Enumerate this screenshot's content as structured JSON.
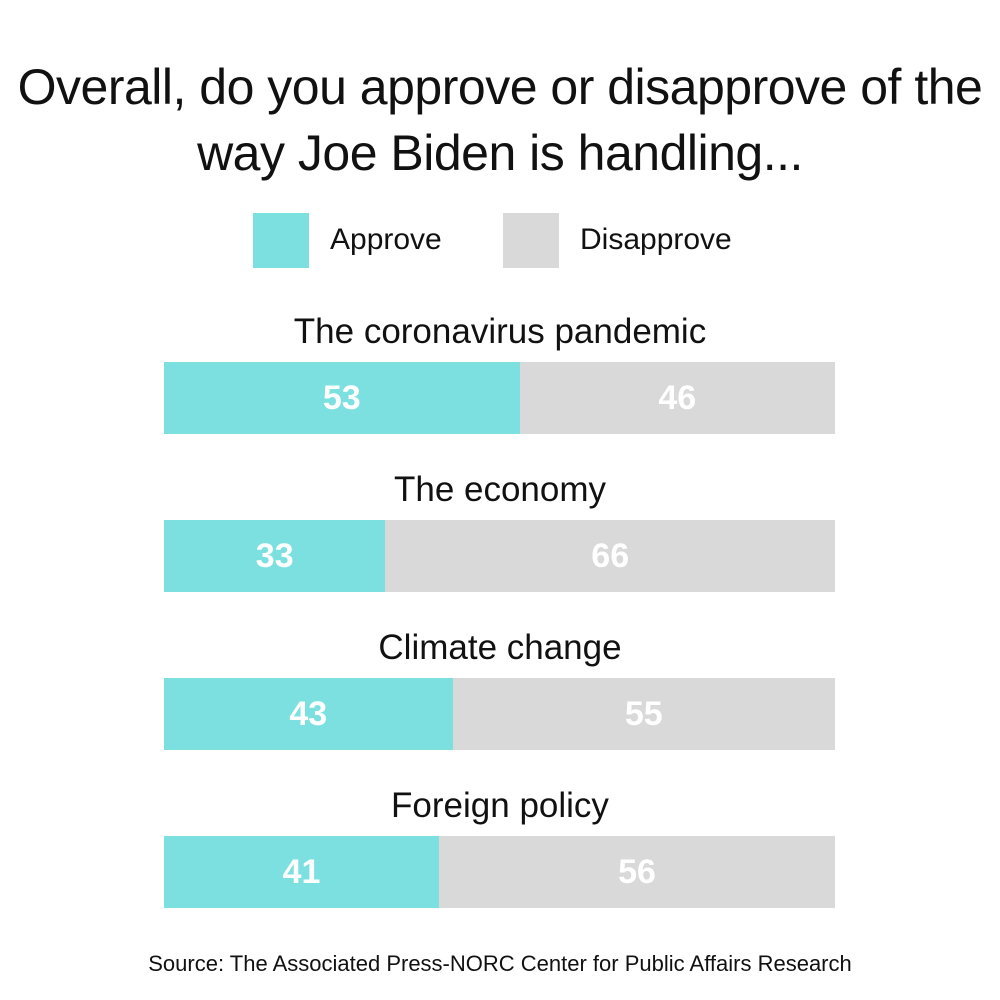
{
  "chart_data": {
    "type": "bar",
    "stacked": true,
    "orientation": "horizontal",
    "title": "Overall, do you approve or disapprove of the way Joe Biden is handling...",
    "categories": [
      "The coronavirus pandemic",
      "The economy",
      "Climate change",
      "Foreign policy"
    ],
    "series": [
      {
        "name": "Approve",
        "color": "#7de0e0",
        "values": [
          53,
          33,
          43,
          41
        ]
      },
      {
        "name": "Disapprove",
        "color": "#d9d9d9",
        "values": [
          46,
          66,
          55,
          56
        ]
      }
    ],
    "legend_position": "top",
    "grid": false,
    "source": "Source: The Associated Press-NORC Center for Public Affairs Research"
  }
}
